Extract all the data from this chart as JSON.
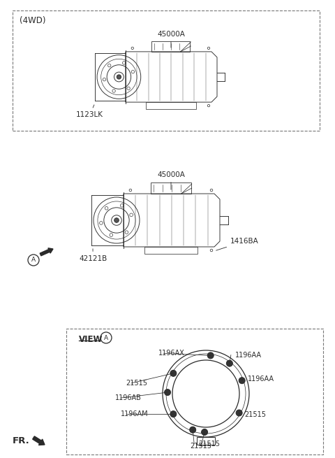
{
  "bg_color": "#ffffff",
  "line_color": "#2a2a2a",
  "title_4wd": "(4WD)",
  "part_45000A_1": "45000A",
  "part_45000A_2": "45000A",
  "part_1123LK": "1123LK",
  "part_42121B": "42121B",
  "part_1416BA": "1416BA",
  "part_1196AX": "1196AX",
  "part_1196AA_1": "1196AA",
  "part_1196AA_2": "1196AA",
  "part_1196AM": "1196AM",
  "part_1196AB": "1196AB",
  "view_label": "VIEW",
  "view_circle_letter": "A",
  "circle_A_letter": "A",
  "fr_label": "FR.",
  "font_size_label": 7.5,
  "font_size_title": 8.5,
  "dashed_box_color": "#777777",
  "annotation_color": "#1a1a1a"
}
